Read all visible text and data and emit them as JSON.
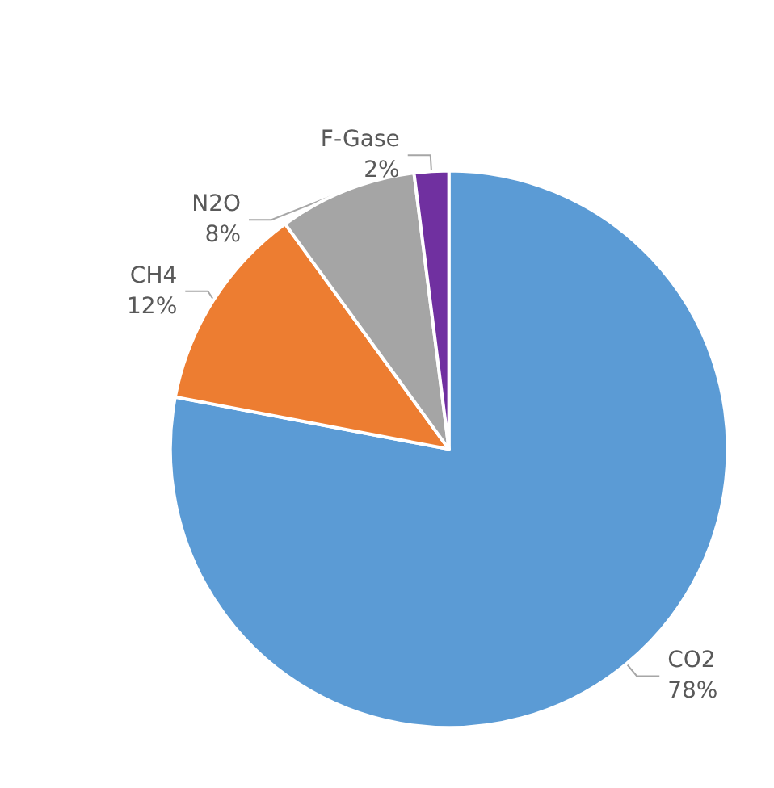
{
  "chart_data": {
    "type": "pie",
    "categories": [
      "CO2",
      "CH4",
      "N2O",
      "F-Gase"
    ],
    "values": [
      78,
      12,
      8,
      2
    ],
    "value_labels": [
      "78%",
      "12%",
      "8%",
      "2%"
    ],
    "colors": [
      "#5b9bd5",
      "#ed7d31",
      "#a5a5a5",
      "#7030a0"
    ],
    "legend": false
  }
}
